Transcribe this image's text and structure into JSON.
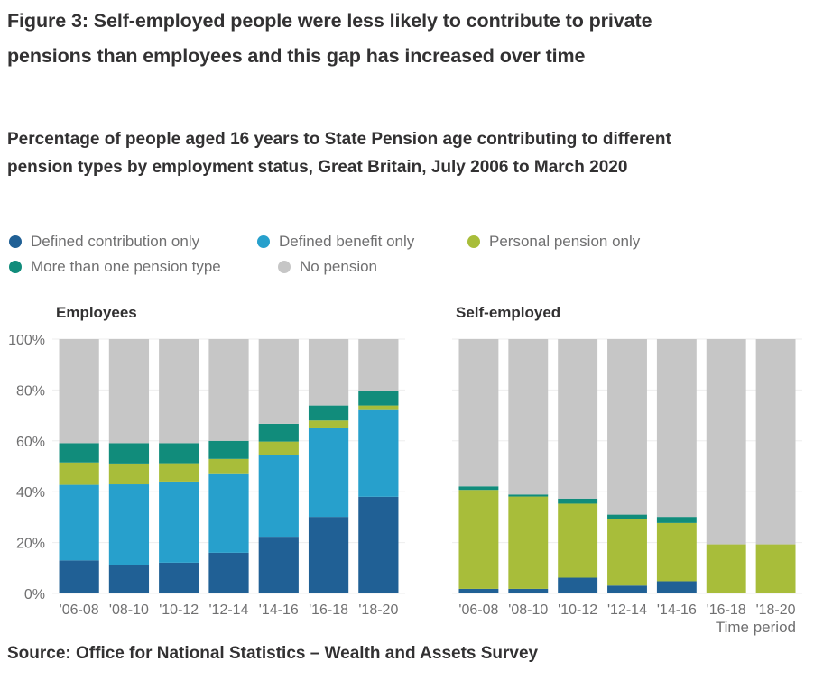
{
  "header": {
    "title": "Figure 3: Self-employed people were less likely to contribute to private pensions than employees and this gap has increased over time",
    "subtitle": "Percentage of people aged 16 years to State Pension age contributing to different pension types by employment status, Great Britain, July 2006 to March 2020"
  },
  "footer": {
    "source": "Source: Office for National Statistics – Wealth and Assets Survey"
  },
  "chart_data": {
    "type": "bar",
    "stacked": true,
    "title": "Percentage of people aged 16 years to State Pension age contributing to different pension types by employment status, Great Britain, July 2006 to March 2020",
    "xlabel": "Time period",
    "ylabel": "",
    "ylim": [
      0,
      100
    ],
    "yticks": [
      "0%",
      "20%",
      "40%",
      "60%",
      "80%",
      "100%"
    ],
    "ytick_values": [
      0,
      20,
      40,
      60,
      80,
      100
    ],
    "grid": true,
    "legend_position": "top-left",
    "categories": [
      "'06-08",
      "'08-10",
      "'10-12",
      "'12-14",
      "'14-16",
      "'16-18",
      "'18-20"
    ],
    "legend": [
      {
        "key": "dc",
        "label": "Defined contribution only",
        "color": "#206095"
      },
      {
        "key": "db",
        "label": "Defined benefit only",
        "color": "#27a0cc"
      },
      {
        "key": "pp",
        "label": "Personal pension only",
        "color": "#a8bd3a"
      },
      {
        "key": "multi",
        "label": "More than one pension type",
        "color": "#118c7b"
      },
      {
        "key": "none",
        "label": "No pension",
        "color": "#c6c6c6"
      }
    ],
    "panels": [
      {
        "name": "Employees",
        "series": [
          {
            "name": "Defined contribution only",
            "key": "dc",
            "values": [
              13.0,
              11.1,
              12.1,
              16.0,
              22.3,
              30.1,
              38.0
            ]
          },
          {
            "name": "Defined benefit only",
            "key": "db",
            "values": [
              29.7,
              31.8,
              31.9,
              30.9,
              32.3,
              34.8,
              34.1
            ]
          },
          {
            "name": "Personal pension only",
            "key": "pp",
            "values": [
              8.8,
              8.2,
              7.2,
              6.0,
              5.1,
              3.1,
              1.8
            ]
          },
          {
            "name": "More than one pension type",
            "key": "multi",
            "values": [
              7.6,
              8.0,
              7.9,
              7.1,
              7.0,
              5.9,
              5.9
            ]
          },
          {
            "name": "No pension",
            "key": "none",
            "values": [
              40.9,
              40.9,
              40.9,
              40.0,
              33.3,
              26.1,
              20.2
            ]
          }
        ]
      },
      {
        "name": "Self-employed",
        "series": [
          {
            "name": "Defined contribution only",
            "key": "dc",
            "values": [
              1.8,
              1.8,
              6.2,
              3.1,
              4.8,
              0,
              0
            ]
          },
          {
            "name": "Defined benefit only",
            "key": "db",
            "values": [
              0,
              0,
              0,
              0,
              0,
              0,
              0
            ]
          },
          {
            "name": "Personal pension only",
            "key": "pp",
            "values": [
              38.9,
              36.3,
              29.1,
              26.0,
              22.9,
              19.3,
              19.3
            ]
          },
          {
            "name": "More than one pension type",
            "key": "multi",
            "values": [
              1.4,
              0.8,
              2.0,
              1.9,
              2.4,
              0,
              0
            ]
          },
          {
            "name": "No pension",
            "key": "none",
            "values": [
              57.9,
              61.1,
              62.7,
              69.0,
              69.9,
              80.7,
              80.7
            ]
          }
        ]
      }
    ]
  }
}
